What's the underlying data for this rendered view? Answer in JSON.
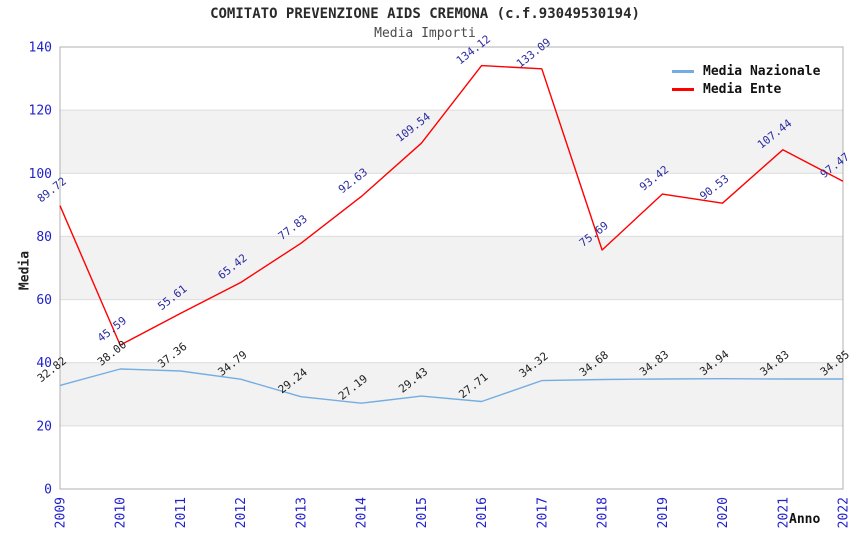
{
  "chart_data": {
    "type": "line",
    "title": "COMITATO PREVENZIONE AIDS CREMONA (c.f.93049530194)",
    "subtitle": "Media Importi",
    "xlabel": "Anno",
    "ylabel": "Media",
    "x": [
      "2009",
      "2010",
      "2011",
      "2012",
      "2013",
      "2014",
      "2015",
      "2016",
      "2017",
      "2018",
      "2019",
      "2020",
      "2021",
      "2022"
    ],
    "series": [
      {
        "name": "Media Nazionale",
        "color": "#76ade1",
        "label_color": "#222222",
        "values": [
          32.82,
          38.0,
          37.36,
          34.79,
          29.24,
          27.19,
          29.43,
          27.71,
          34.32,
          34.68,
          34.83,
          34.94,
          34.83,
          34.85
        ]
      },
      {
        "name": "Media Ente",
        "color": "#ff0000",
        "label_color": "#2b2ba0",
        "values": [
          89.72,
          45.59,
          55.61,
          65.42,
          77.83,
          92.63,
          109.54,
          134.12,
          133.09,
          75.69,
          93.42,
          90.53,
          107.44,
          97.47
        ]
      }
    ],
    "ylim": [
      0,
      140
    ],
    "yticks": [
      0,
      20,
      40,
      60,
      80,
      100,
      120,
      140
    ],
    "grid": "alternating horizontal bands every 20 units",
    "legend_position": "top-right",
    "colors": {
      "axis_tick_text": "#2222cc",
      "band_fill": "#f2f2f2",
      "grid_line": "#dcdcdc",
      "plot_border": "#b0b0b0"
    }
  }
}
